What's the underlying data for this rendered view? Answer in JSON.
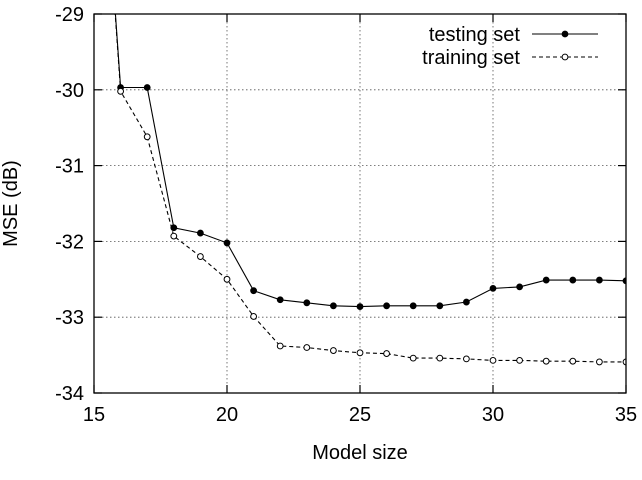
{
  "chart_data": {
    "type": "line",
    "title": "",
    "xlabel": "Model size",
    "ylabel": "MSE (dB)",
    "xlim": [
      15,
      35
    ],
    "ylim": [
      -34,
      -29
    ],
    "xticks": [
      15,
      20,
      25,
      30,
      35
    ],
    "yticks": [
      -34,
      -33,
      -32,
      -31,
      -30,
      -29
    ],
    "grid": true,
    "legend_position": "top-right",
    "x": [
      15,
      16,
      17,
      18,
      19,
      20,
      21,
      22,
      23,
      24,
      25,
      26,
      27,
      28,
      29,
      30,
      31,
      32,
      33,
      34,
      35
    ],
    "series": [
      {
        "name": "testing set",
        "marker": "filled-circle",
        "line_style": "solid",
        "values": [
          -25.0,
          -29.97,
          -29.97,
          -31.82,
          -31.89,
          -32.02,
          -32.65,
          -32.77,
          -32.81,
          -32.85,
          -32.86,
          -32.85,
          -32.85,
          -32.85,
          -32.8,
          -32.62,
          -32.6,
          -32.51,
          -32.51,
          -32.51,
          -32.52
        ]
      },
      {
        "name": "training set",
        "marker": "open-circle",
        "line_style": "dashed",
        "values": [
          -25.0,
          -30.02,
          -30.62,
          -31.93,
          -32.2,
          -32.5,
          -32.99,
          -33.38,
          -33.4,
          -33.44,
          -33.47,
          -33.48,
          -33.54,
          -33.54,
          -33.55,
          -33.57,
          -33.57,
          -33.58,
          -33.58,
          -33.59,
          -33.59
        ]
      }
    ]
  }
}
